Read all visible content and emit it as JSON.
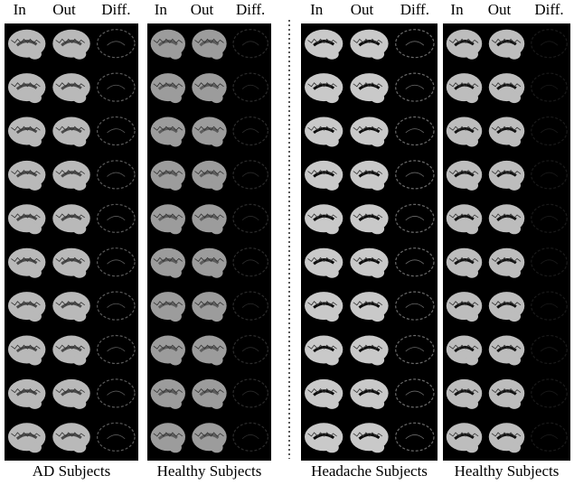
{
  "panels": [
    {
      "columns": [
        "In",
        "Out",
        "Diff."
      ],
      "caption": "AD Subjects"
    },
    {
      "columns": [
        "In",
        "Out",
        "Diff."
      ],
      "caption": "Healthy Subjects"
    },
    {
      "columns": [
        "In",
        "Out",
        "Diff."
      ],
      "caption": "Headache Subjects"
    },
    {
      "columns": [
        "In",
        "Out",
        "Diff."
      ],
      "caption": "Healthy Subjects"
    }
  ]
}
